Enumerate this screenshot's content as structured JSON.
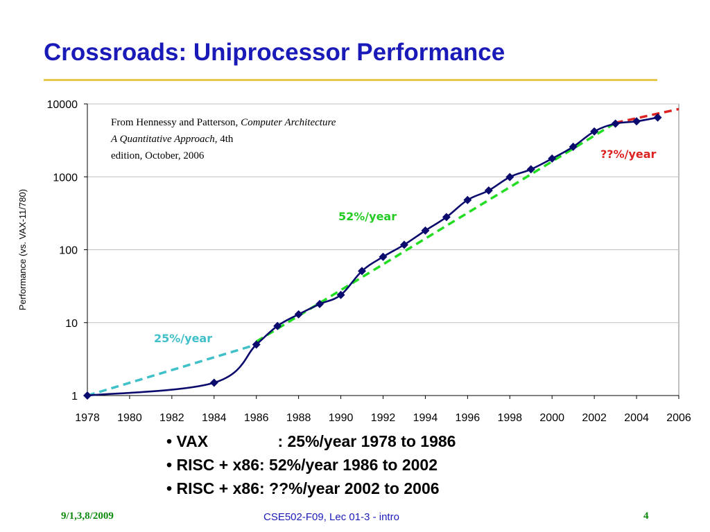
{
  "slide": {
    "title": "Crossroads: Uniprocessor Performance"
  },
  "chart_data": {
    "type": "line",
    "ylabel": "Performance (vs. VAX-11/780)",
    "y_scale": "log",
    "ylim": [
      1,
      10000
    ],
    "xlim": [
      1978,
      2006
    ],
    "x_ticks": [
      "1978",
      "1980",
      "1982",
      "1984",
      "1986",
      "1988",
      "1990",
      "1992",
      "1994",
      "1996",
      "1998",
      "2000",
      "2002",
      "2004",
      "2006"
    ],
    "y_ticks": [
      "1",
      "10",
      "100",
      "1000",
      "10000"
    ],
    "grid": true,
    "series": [
      {
        "name": "",
        "style": "solid-markers",
        "color": "#0b0b6e",
        "x": [
          1978,
          1984,
          1986,
          1987,
          1988,
          1989,
          1990,
          1991,
          1992,
          1993,
          1994,
          1995,
          1996,
          1997,
          1998,
          1999,
          2000,
          2001,
          2002,
          2003,
          2004,
          2005
        ],
        "y": [
          1,
          1.5,
          5,
          9,
          13,
          18,
          24,
          51,
          80,
          117,
          183,
          280,
          481,
          649,
          993,
          1267,
          1779,
          2584,
          4195,
          5364,
          5764,
          6505
        ]
      },
      {
        "name": "",
        "style": "dashed",
        "color": "#40c0c8",
        "x": [
          1978,
          1986
        ],
        "y": [
          1,
          5
        ]
      },
      {
        "name": "",
        "style": "dashed",
        "color": "#22dd22",
        "x": [
          1986,
          2003
        ],
        "y": [
          5.5,
          5500
        ]
      },
      {
        "name": "",
        "style": "dashed",
        "color": "#dd2222",
        "x": [
          2003,
          2006
        ],
        "y": [
          5500,
          8500
        ]
      }
    ],
    "annotations": [
      {
        "text": "25%/year",
        "color": "#40c0c8"
      },
      {
        "text": "52%/year",
        "color": "#22cc22"
      },
      {
        "text": "??%/year",
        "color": "#dd2222"
      }
    ],
    "source_note": {
      "prefix": "From Hennessy and Patterson, ",
      "book": "Computer Architecture: A Quantitative Approach",
      "suffix": ", 4th edition, October, 2006"
    }
  },
  "bullets": [
    {
      "label": "VAX",
      "text": ": 25%/year 1978 to 1986"
    },
    {
      "label": "RISC + x86",
      "text": ": 52%/year 1986 to 2002"
    },
    {
      "label": "RISC + x86",
      "text": ": ??%/year 2002 to 2006"
    }
  ],
  "footer": {
    "date": "9/1,3,8/2009",
    "course": "CSE502-F09, Lec 01-3 - intro",
    "page": "4"
  }
}
